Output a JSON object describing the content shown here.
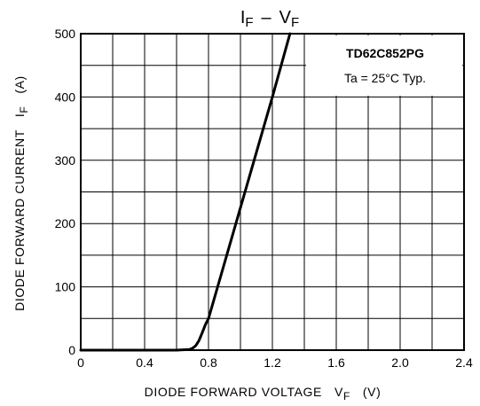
{
  "chart_data": {
    "type": "line",
    "title": {
      "main_left": "I",
      "main_left_sub": "F",
      "dash": "–",
      "main_right": "V",
      "main_right_sub": "F"
    },
    "xlabel": {
      "text": "DIODE FORWARD VOLTAGE",
      "symbol": "V",
      "symbol_sub": "F",
      "unit": "(V)"
    },
    "ylabel": {
      "text": "DIODE FORWARD CURRENT",
      "symbol": "I",
      "symbol_sub": "F",
      "unit": "(A)"
    },
    "xlim": [
      0,
      2.4
    ],
    "ylim": [
      0,
      500
    ],
    "x_ticks": [
      "0",
      "0.4",
      "0.8",
      "1.2",
      "1.6",
      "2.0",
      "2.4"
    ],
    "y_ticks": [
      "0",
      "100",
      "200",
      "300",
      "400",
      "500"
    ],
    "x_tick_values": [
      0,
      0.4,
      0.8,
      1.2,
      1.6,
      2.0,
      2.4
    ],
    "y_tick_values": [
      0,
      100,
      200,
      300,
      400,
      500
    ],
    "grid": true,
    "annotation": {
      "part_number": "TD62C852PG",
      "condition": "Ta = 25°C  Typ."
    },
    "series": [
      {
        "x": [
          0,
          0.6,
          0.68,
          0.7,
          0.72,
          0.74,
          0.76,
          0.78,
          0.8,
          1.0,
          1.2,
          1.31
        ],
        "y": [
          0,
          0,
          1,
          3,
          7,
          15,
          27,
          40,
          50,
          225,
          400,
          500
        ]
      }
    ],
    "colors": {
      "line": "#000000",
      "grid": "#000000"
    }
  }
}
